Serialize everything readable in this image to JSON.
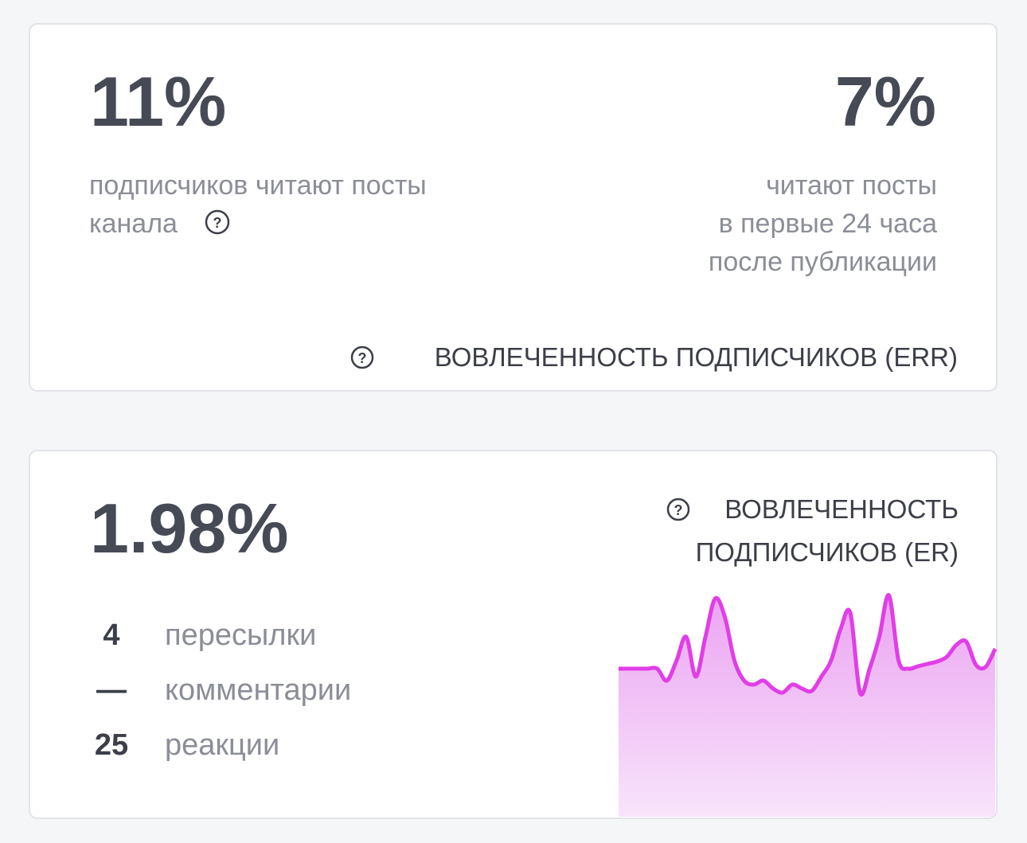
{
  "cards": [
    {
      "metrics": [
        {
          "value": "11%",
          "caption": [
            "подписчиков читают посты",
            "канала"
          ]
        },
        {
          "value": "7%",
          "caption": [
            "читают посты",
            "в первые 24 часа",
            "после публикации"
          ]
        }
      ],
      "label": "ВОВЛЕЧЕННОСТЬ ПОДПИСЧИКОВ (ERR)"
    },
    {
      "metric": "1.98%",
      "label": [
        "ВОВЛЕЧЕННОСТЬ",
        "ПОДПИСЧИКОВ (ER)"
      ],
      "stats": [
        {
          "count": "4",
          "name": "пересылки"
        },
        {
          "count": "—",
          "name": "комментарии"
        },
        {
          "count": "25",
          "name": "реакции"
        }
      ],
      "sparkline": {
        "type": "line",
        "color": "#e03ee6",
        "values": [
          186,
          186,
          186,
          186,
          186,
          171,
          196,
          226,
          176,
          226,
          274,
          251,
          196,
          171,
          166,
          171,
          161,
          156,
          166,
          161,
          158,
          176,
          196,
          236,
          256,
          156,
          186,
          226,
          278,
          196,
          186,
          189,
          192,
          195,
          201,
          216,
          220,
          191,
          188,
          211
        ]
      }
    }
  ]
}
